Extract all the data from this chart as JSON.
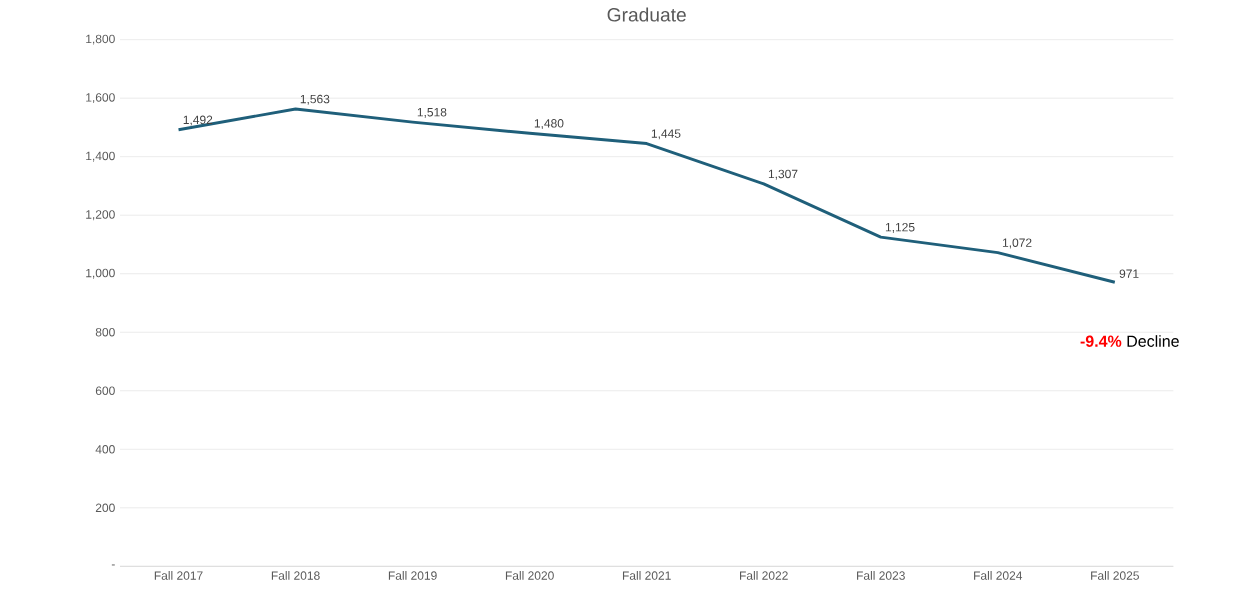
{
  "chart_data": {
    "type": "line",
    "title": "Graduate",
    "categories": [
      "Fall 2017",
      "Fall 2018",
      "Fall 2019",
      "Fall 2020",
      "Fall 2021",
      "Fall 2022",
      "Fall 2023",
      "Fall 2024",
      "Fall 2025"
    ],
    "series": [
      {
        "color": "#1f5f7a",
        "values": [
          1492,
          1563,
          1518,
          1480,
          1445,
          1307,
          1125,
          1072,
          971
        ],
        "value_labels": [
          "1,492",
          "1,563",
          "1,518",
          "1,480",
          "1,445",
          "1,307",
          "1,125",
          "1,072",
          "971"
        ]
      }
    ],
    "ylim": [
      0,
      1800
    ],
    "yticks": [
      {
        "value": 0,
        "label": "-"
      },
      {
        "value": 200,
        "label": "200"
      },
      {
        "value": 400,
        "label": "400"
      },
      {
        "value": 600,
        "label": "600"
      },
      {
        "value": 800,
        "label": "800"
      },
      {
        "value": 1000,
        "label": "1,000"
      },
      {
        "value": 1200,
        "label": "1,200"
      },
      {
        "value": 1400,
        "label": "1,400"
      },
      {
        "value": 1600,
        "label": "1,600"
      },
      {
        "value": 1800,
        "label": "1,800"
      }
    ],
    "grid": "y",
    "marker": "none",
    "line_style": "solid",
    "annotations": [
      "-9.4%",
      "Decline"
    ]
  }
}
